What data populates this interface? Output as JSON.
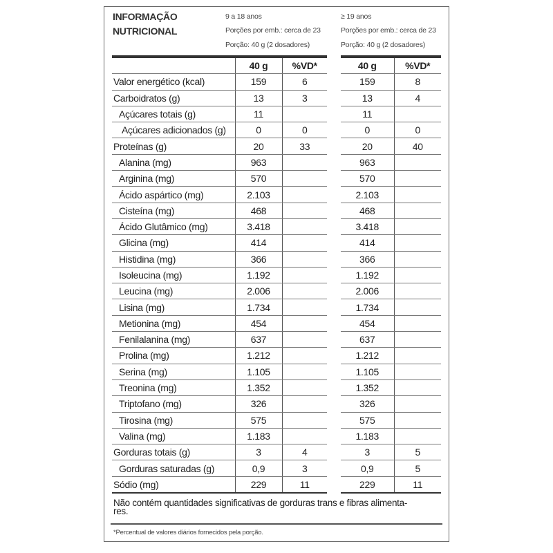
{
  "title_line1": "INFORMAÇÃO",
  "title_line2": "NUTRICIONAL",
  "groups": [
    {
      "age": "9 a 18 anos",
      "servings": "Porções por emb.: cerca de 23",
      "portion": "Porção: 40 g (2 dosadores)"
    },
    {
      "age": "≥ 19 anos",
      "servings": "Porções por emb.: cerca de 23",
      "portion": "Porção: 40 g (2 dosadores)"
    }
  ],
  "headers": {
    "amount": "40 g",
    "dv": "%VD*"
  },
  "rows": [
    {
      "label": "Valor energético (kcal)",
      "indent": 0,
      "a1": "159",
      "d1": "6",
      "a2": "159",
      "d2": "8"
    },
    {
      "label": "Carboidratos (g)",
      "indent": 0,
      "a1": "13",
      "d1": "3",
      "a2": "13",
      "d2": "4"
    },
    {
      "label": "Açúcares totais (g)",
      "indent": 1,
      "a1": "11",
      "d1": "",
      "a2": "11",
      "d2": ""
    },
    {
      "label": "Açúcares adicionados (g)",
      "indent": 2,
      "a1": "0",
      "d1": "0",
      "a2": "0",
      "d2": "0"
    },
    {
      "label": "Proteínas (g)",
      "indent": 0,
      "a1": "20",
      "d1": "33",
      "a2": "20",
      "d2": "40"
    },
    {
      "label": "Alanina (mg)",
      "indent": 1,
      "a1": "963",
      "d1": "",
      "a2": "963",
      "d2": ""
    },
    {
      "label": "Arginina (mg)",
      "indent": 1,
      "a1": "570",
      "d1": "",
      "a2": "570",
      "d2": ""
    },
    {
      "label": "Ácido aspártico (mg)",
      "indent": 1,
      "a1": "2.103",
      "d1": "",
      "a2": "2.103",
      "d2": ""
    },
    {
      "label": "Cisteína (mg)",
      "indent": 1,
      "a1": "468",
      "d1": "",
      "a2": "468",
      "d2": ""
    },
    {
      "label": "Ácido Glutâmico (mg)",
      "indent": 1,
      "a1": "3.418",
      "d1": "",
      "a2": "3.418",
      "d2": ""
    },
    {
      "label": "Glicina (mg)",
      "indent": 1,
      "a1": "414",
      "d1": "",
      "a2": "414",
      "d2": ""
    },
    {
      "label": "Histidina (mg)",
      "indent": 1,
      "a1": "366",
      "d1": "",
      "a2": "366",
      "d2": ""
    },
    {
      "label": "Isoleucina (mg)",
      "indent": 1,
      "a1": "1.192",
      "d1": "",
      "a2": "1.192",
      "d2": ""
    },
    {
      "label": "Leucina (mg)",
      "indent": 1,
      "a1": "2.006",
      "d1": "",
      "a2": "2.006",
      "d2": ""
    },
    {
      "label": "Lisina (mg)",
      "indent": 1,
      "a1": "1.734",
      "d1": "",
      "a2": "1.734",
      "d2": ""
    },
    {
      "label": "Metionina (mg)",
      "indent": 1,
      "a1": "454",
      "d1": "",
      "a2": "454",
      "d2": ""
    },
    {
      "label": "Fenilalanina (mg)",
      "indent": 1,
      "a1": "637",
      "d1": "",
      "a2": "637",
      "d2": ""
    },
    {
      "label": "Prolina (mg)",
      "indent": 1,
      "a1": "1.212",
      "d1": "",
      "a2": "1.212",
      "d2": ""
    },
    {
      "label": "Serina (mg)",
      "indent": 1,
      "a1": "1.105",
      "d1": "",
      "a2": "1.105",
      "d2": ""
    },
    {
      "label": "Treonina (mg)",
      "indent": 1,
      "a1": "1.352",
      "d1": "",
      "a2": "1.352",
      "d2": ""
    },
    {
      "label": "Triptofano (mg)",
      "indent": 1,
      "a1": "326",
      "d1": "",
      "a2": "326",
      "d2": ""
    },
    {
      "label": "Tirosina (mg)",
      "indent": 1,
      "a1": "575",
      "d1": "",
      "a2": "575",
      "d2": ""
    },
    {
      "label": "Valina (mg)",
      "indent": 1,
      "a1": "1.183",
      "d1": "",
      "a2": "1.183",
      "d2": ""
    },
    {
      "label": "Gorduras totais (g)",
      "indent": 0,
      "a1": "3",
      "d1": "4",
      "a2": "3",
      "d2": "5"
    },
    {
      "label": "Gorduras saturadas (g)",
      "indent": 1,
      "a1": "0,9",
      "d1": "3",
      "a2": "0,9",
      "d2": "5"
    },
    {
      "label": "Sódio (mg)",
      "indent": 0,
      "a1": "229",
      "d1": "11",
      "a2": "229",
      "d2": "11"
    }
  ],
  "note": "Não contém quantidades significativas de gorduras trans e fibras alimenta-res.",
  "note_line1": "Não contém quantidades significativas de gorduras trans e fibras alimenta-",
  "note_line2": "res.",
  "footnote": "*Percentual de valores diários fornecidos pela porção."
}
